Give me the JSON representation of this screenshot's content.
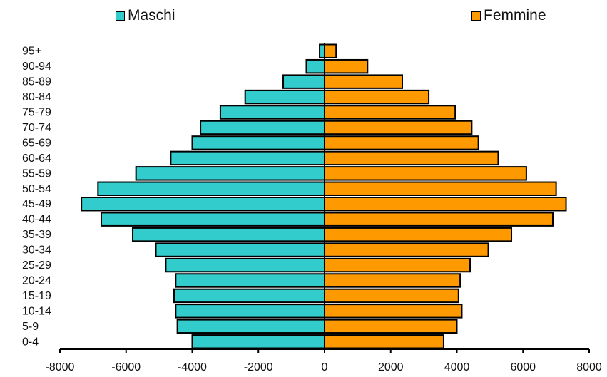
{
  "chart_data": {
    "type": "bar",
    "orientation": "horizontal",
    "categories": [
      "0-4",
      "5-9",
      "10-14",
      "15-19",
      "20-24",
      "25-29",
      "30-34",
      "35-39",
      "40-44",
      "45-49",
      "50-54",
      "55-59",
      "60-64",
      "65-69",
      "70-74",
      "75-79",
      "80-84",
      "85-89",
      "90-94",
      "95+"
    ],
    "series": [
      {
        "name": "Maschi",
        "color": "#33CCCC",
        "values": [
          -4000,
          -4450,
          -4500,
          -4550,
          -4500,
          -4800,
          -5100,
          -5800,
          -6750,
          -7350,
          -6850,
          -5700,
          -4650,
          -4000,
          -3750,
          -3150,
          -2400,
          -1250,
          -550,
          -150
        ]
      },
      {
        "name": "Femmine",
        "color": "#FF9900",
        "values": [
          3600,
          4000,
          4150,
          4050,
          4100,
          4400,
          4950,
          5650,
          6900,
          7300,
          7000,
          6100,
          5250,
          4650,
          4450,
          3950,
          3150,
          2350,
          1300,
          350
        ]
      }
    ],
    "xlim": [
      -8000,
      8000
    ],
    "xticks": [
      -8000,
      -6000,
      -4000,
      -2000,
      0,
      2000,
      4000,
      6000,
      8000
    ],
    "legend_position": "top",
    "grid": false,
    "title": "",
    "xlabel": "",
    "ylabel": ""
  }
}
